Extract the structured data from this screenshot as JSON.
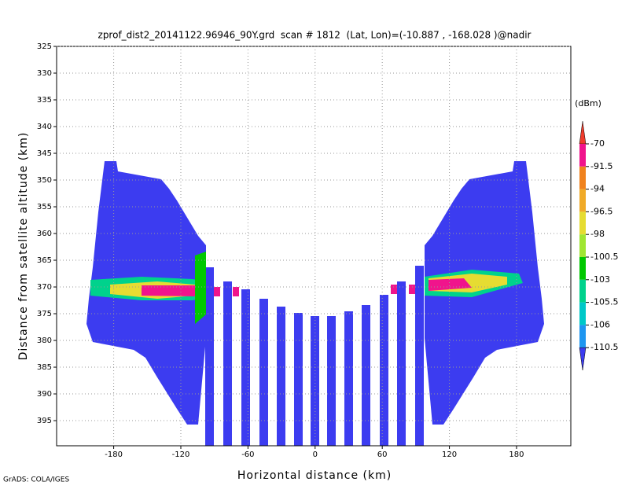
{
  "chart_data": {
    "type": "contour",
    "title": "zprof_dist2_20141122.96946_90Y.grd  scan # 1812  (Lat, Lon)=(-10.887 , -168.028 )@nadir",
    "x_label": "Horizontal distance (km)",
    "y_label": "Distance from satellite altitude (km)",
    "xlim": [
      -231,
      228.5
    ],
    "ylim": [
      399.7,
      325
    ],
    "xticks": [
      -180,
      -120,
      -60,
      0,
      60,
      120,
      180
    ],
    "yticks": [
      325,
      330,
      335,
      340,
      345,
      350,
      355,
      360,
      365,
      370,
      375,
      380,
      385,
      390,
      395
    ],
    "grid": true,
    "colorbar_unit": "(dBm)",
    "levels": [
      -70,
      -91.5,
      -94,
      -96.5,
      -98,
      -100.5,
      -103,
      -105.5,
      -106,
      -110.5
    ],
    "colors": [
      "#f03c2c",
      "#f0148c",
      "#f0821e",
      "#f0aa28",
      "#e6dc32",
      "#a0e632",
      "#00c800",
      "#00d28c",
      "#00c8c8",
      "#1e96f0",
      "#3c3cf0"
    ],
    "footer": "GrADS: COLA/IGES"
  }
}
